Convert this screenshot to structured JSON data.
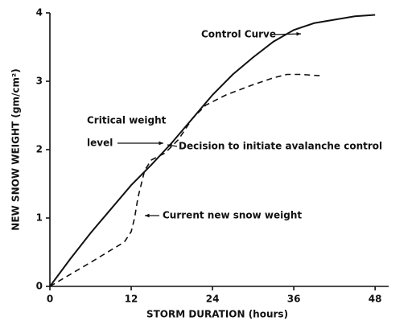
{
  "chart_data": {
    "type": "line",
    "x_label": "STORM DURATION (hours)",
    "y_label": "NEW SNOW WEIGHT (gm/cm²)",
    "xlim": [
      0,
      50
    ],
    "ylim": [
      0,
      4
    ],
    "xticks": [
      0,
      12,
      24,
      36,
      48
    ],
    "yticks": [
      0,
      1,
      2,
      3,
      4
    ],
    "grid": false,
    "series": [
      {
        "name": "Control Curve",
        "color": "#111111",
        "dashed": false,
        "x": [
          0,
          3,
          6,
          9,
          12,
          15,
          18,
          21,
          24,
          27,
          30,
          33,
          36,
          39,
          42,
          45,
          48
        ],
        "values": [
          0,
          0.4,
          0.78,
          1.13,
          1.48,
          1.78,
          2.1,
          2.45,
          2.8,
          3.1,
          3.35,
          3.58,
          3.75,
          3.85,
          3.9,
          3.95,
          3.97
        ]
      },
      {
        "name": "Current new snow weight",
        "color": "#111111",
        "dashed": true,
        "x": [
          0,
          6,
          11,
          12,
          12.5,
          13,
          14,
          15,
          17,
          19,
          21,
          23,
          26,
          30,
          33,
          35,
          37,
          40
        ],
        "values": [
          0,
          0.35,
          0.65,
          0.8,
          1.0,
          1.3,
          1.7,
          1.85,
          1.95,
          2.15,
          2.45,
          2.65,
          2.8,
          2.95,
          3.05,
          3.1,
          3.1,
          3.08
        ]
      }
    ],
    "annotations": [
      "Critical weight",
      "level",
      "Decision to initiate avalanche control"
    ]
  }
}
